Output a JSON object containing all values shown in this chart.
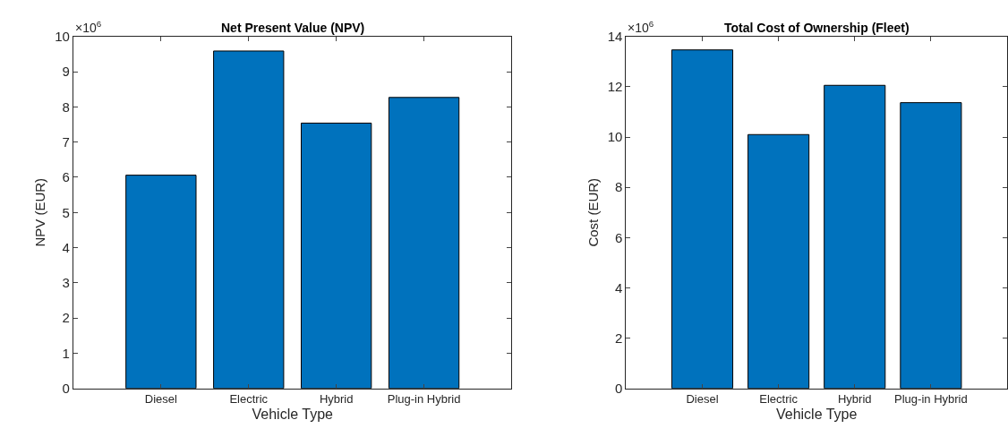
{
  "chart_data": [
    {
      "type": "bar",
      "title": "Net Present Value (NPV)",
      "xlabel": "Vehicle Type",
      "ylabel": "NPV (EUR)",
      "annotations": [
        "×10$^{6}$"
      ],
      "categories": [
        "Diesel",
        "Electric",
        "Hybrid",
        "Plug-in Hybrid"
      ],
      "values": [
        6.06,
        9.59,
        7.54,
        8.27
      ],
      "color": "#0072bd",
      "ylim": [
        0,
        10
      ],
      "yticks": [
        0,
        1,
        2,
        3,
        4,
        5,
        6,
        7,
        8,
        9,
        10
      ]
    },
    {
      "type": "bar",
      "title": "Total Cost of Ownership (Fleet)",
      "xlabel": "Vehicle Type",
      "ylabel": "Cost (EUR)",
      "annotations": [
        "×10$^{6}$"
      ],
      "categories": [
        "Diesel",
        "Electric",
        "Hybrid",
        "Plug-in Hybrid"
      ],
      "values": [
        13.47,
        10.1,
        12.06,
        11.37
      ],
      "color": "#0072bd",
      "ylim": [
        0,
        14
      ],
      "yticks": [
        0,
        2,
        4,
        6,
        8,
        10,
        12,
        14
      ]
    }
  ]
}
